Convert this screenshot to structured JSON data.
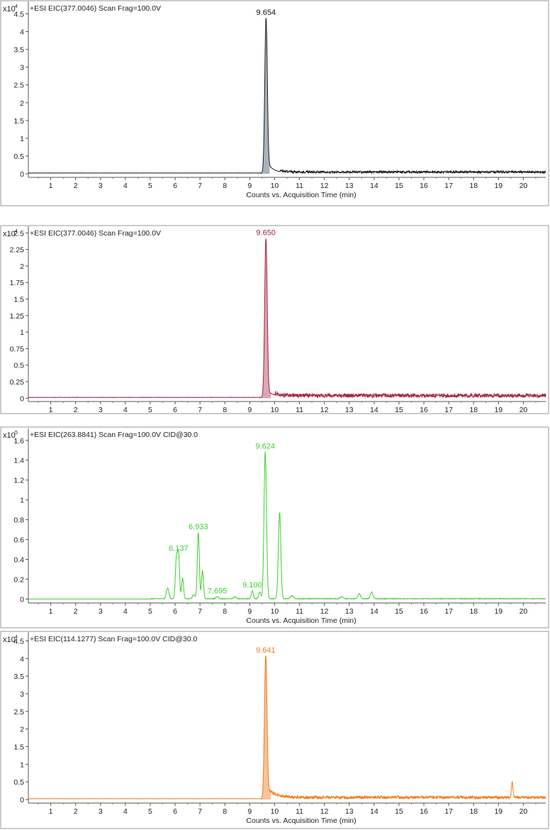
{
  "chart_data": [
    {
      "type": "line",
      "title": "+ESI EIC(377.0046) Scan Frag=100.0V",
      "scale_base": "x10",
      "scale_exp": "4",
      "xlabel": "Counts vs. Acquisition Time (min)",
      "xlim": [
        0.1,
        20.9
      ],
      "ylim": [
        -0.1,
        4.85
      ],
      "xticks": [
        "1",
        "2",
        "3",
        "4",
        "5",
        "6",
        "7",
        "8",
        "9",
        "10",
        "11",
        "12",
        "13",
        "14",
        "15",
        "16",
        "17",
        "18",
        "19",
        "20"
      ],
      "yticks": [
        "0",
        "0.5",
        "1",
        "1.5",
        "2",
        "2.5",
        "3",
        "3.5",
        "4",
        "4.5"
      ],
      "color": "#1f1f1f",
      "fill": "#a9b3bd",
      "baseline": 0.02,
      "noise": 0.06,
      "noise_start": 10.2,
      "peaks": [
        {
          "t": 9.654,
          "h": 4.35,
          "w": 0.05,
          "label": "9.654",
          "labeled": true,
          "tail": 0.35,
          "tailDecay": 0.25
        }
      ],
      "filled": [
        9.4,
        9.8
      ]
    },
    {
      "type": "line",
      "title": "+ESI EIC(377.0046) Scan Frag=100.0V",
      "scale_base": "x10",
      "scale_exp": "4",
      "xlabel": "Counts vs. Acquisition Time (min)",
      "xlim": [
        0.1,
        20.9
      ],
      "ylim": [
        -0.05,
        2.6
      ],
      "xticks": [
        "1",
        "2",
        "3",
        "4",
        "5",
        "6",
        "7",
        "8",
        "9",
        "10",
        "11",
        "12",
        "13",
        "14",
        "15",
        "16",
        "17",
        "18",
        "19",
        "20"
      ],
      "yticks": [
        "0",
        "0.25",
        "0.5",
        "0.75",
        "1",
        "1.25",
        "1.5",
        "1.75",
        "2",
        "2.25",
        "2.5"
      ],
      "color": "#a3263e",
      "fill": "#d9a8b2",
      "baseline": 0.01,
      "noise": 0.06,
      "noise_start": 10.0,
      "peaks": [
        {
          "t": 9.65,
          "h": 2.4,
          "w": 0.05,
          "label": "9.650",
          "labeled": true,
          "tail": 0.12,
          "tailDecay": 0.3
        }
      ],
      "filled": [
        9.4,
        9.85
      ]
    },
    {
      "type": "line",
      "title": "+ESI EIC(263.8841) Scan Frag=100.0V CID@30.0",
      "scale_base": "x10",
      "scale_exp": "5",
      "xlabel": "Counts vs. Acquisition Time (min)",
      "xlim": [
        0.1,
        20.9
      ],
      "ylim": [
        -0.04,
        1.72
      ],
      "xticks": [
        "1",
        "2",
        "3",
        "4",
        "5",
        "6",
        "7",
        "8",
        "9",
        "10",
        "11",
        "12",
        "13",
        "14",
        "15",
        "16",
        "17",
        "18",
        "19",
        "20"
      ],
      "yticks": [
        "0",
        "0.2",
        "0.4",
        "0.6",
        "0.8",
        "1",
        "1.2",
        "1.4",
        "1.6"
      ],
      "color": "#3ccf2c",
      "fill": "none",
      "baseline": 0.0,
      "noise": 0.006,
      "noise_start": 5.0,
      "peaks": [
        {
          "t": 5.7,
          "h": 0.11,
          "w": 0.05,
          "label": "",
          "labeled": false
        },
        {
          "t": 6.05,
          "h": 0.4,
          "w": 0.04,
          "label": "",
          "labeled": false
        },
        {
          "t": 6.137,
          "h": 0.45,
          "w": 0.04,
          "label": "6.137",
          "labeled": true
        },
        {
          "t": 6.3,
          "h": 0.21,
          "w": 0.04,
          "label": "",
          "labeled": false
        },
        {
          "t": 6.75,
          "h": 0.04,
          "w": 0.05,
          "label": "",
          "labeled": false
        },
        {
          "t": 6.933,
          "h": 0.67,
          "w": 0.04,
          "label": "6.933",
          "labeled": true
        },
        {
          "t": 7.1,
          "h": 0.28,
          "w": 0.04,
          "label": "",
          "labeled": false
        },
        {
          "t": 7.695,
          "h": 0.02,
          "w": 0.05,
          "label": "7.695",
          "labeled": true
        },
        {
          "t": 8.4,
          "h": 0.02,
          "w": 0.05,
          "label": "",
          "labeled": false
        },
        {
          "t": 9.1,
          "h": 0.08,
          "w": 0.04,
          "label": "9.100",
          "labeled": true
        },
        {
          "t": 9.4,
          "h": 0.07,
          "w": 0.04,
          "label": "",
          "labeled": false
        },
        {
          "t": 9.624,
          "h": 1.48,
          "w": 0.05,
          "label": "9.624",
          "labeled": true
        },
        {
          "t": 10.2,
          "h": 0.87,
          "w": 0.05,
          "label": "",
          "labeled": false
        },
        {
          "t": 10.7,
          "h": 0.03,
          "w": 0.06,
          "label": "",
          "labeled": false
        },
        {
          "t": 12.7,
          "h": 0.02,
          "w": 0.06,
          "label": "",
          "labeled": false
        },
        {
          "t": 13.4,
          "h": 0.05,
          "w": 0.05,
          "label": "",
          "labeled": false
        },
        {
          "t": 13.9,
          "h": 0.07,
          "w": 0.05,
          "label": "",
          "labeled": false
        }
      ],
      "filled": null
    },
    {
      "type": "line",
      "title": "+ESI EIC(114.1277) Scan Frag=100.0V CID@30.0",
      "scale_base": "x10",
      "scale_exp": "4",
      "xlabel": "Counts vs. Acquisition Time (min)",
      "xlim": [
        0.1,
        20.9
      ],
      "ylim": [
        -0.1,
        4.75
      ],
      "xticks": [
        "1",
        "2",
        "3",
        "4",
        "5",
        "6",
        "7",
        "8",
        "9",
        "10",
        "11",
        "12",
        "13",
        "14",
        "15",
        "16",
        "17",
        "18",
        "19",
        "20"
      ],
      "yticks": [
        "0",
        "0.5",
        "1",
        "1.5",
        "2",
        "2.5",
        "3",
        "3.5",
        "4",
        "4.5"
      ],
      "color": "#f07c1e",
      "fill": "#f6c39a",
      "baseline": 0.02,
      "noise": 0.08,
      "noise_start": 9.8,
      "peaks": [
        {
          "t": 9.641,
          "h": 4.05,
          "w": 0.05,
          "label": "9.641",
          "labeled": true,
          "tail": 0.35,
          "tailDecay": 0.3
        },
        {
          "t": 19.55,
          "h": 0.45,
          "w": 0.03,
          "label": "",
          "labeled": false
        }
      ],
      "filled": [
        9.4,
        9.85
      ]
    }
  ]
}
